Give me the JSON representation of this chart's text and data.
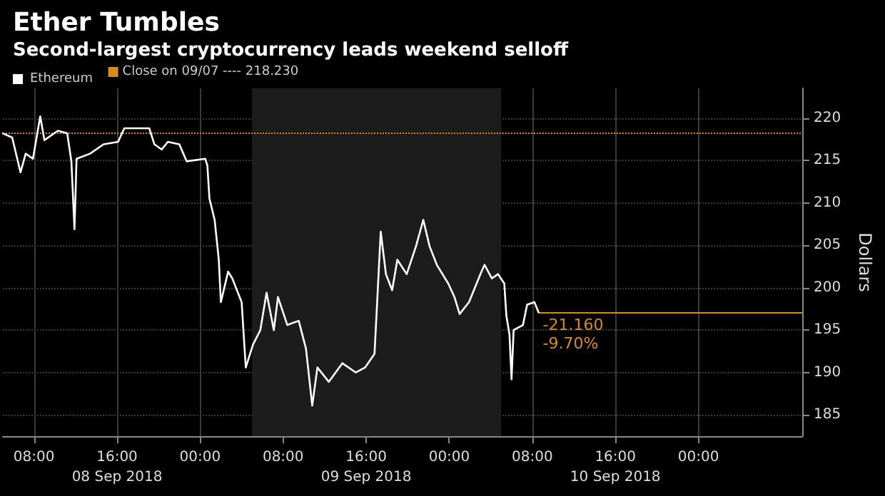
{
  "chart_data": {
    "type": "line",
    "title": "Ether Tumbles",
    "subtitle": "Second-largest cryptocurrency leads weekend selloff",
    "ylabel": "Dollars",
    "x": [
      "2018-09-08T05:00",
      "2018-09-08T05:54",
      "2018-09-08T06:42",
      "2018-09-08T07:12",
      "2018-09-08T07:54",
      "2018-09-08T08:36",
      "2018-09-08T09:00",
      "2018-09-08T10:18",
      "2018-09-08T11:12",
      "2018-09-08T11:36",
      "2018-09-08T11:54",
      "2018-09-08T12:06",
      "2018-09-08T13:24",
      "2018-09-08T14:42",
      "2018-09-08T16:06",
      "2018-09-08T16:42",
      "2018-09-08T17:48",
      "2018-09-08T19:06",
      "2018-09-08T19:36",
      "2018-09-08T20:18",
      "2018-09-08T20:54",
      "2018-09-08T22:00",
      "2018-09-08T22:42",
      "2018-09-09T00:30",
      "2018-09-09T00:42",
      "2018-09-09T00:54",
      "2018-09-09T01:24",
      "2018-09-09T01:48",
      "2018-09-09T02:00",
      "2018-09-09T02:42",
      "2018-09-09T03:06",
      "2018-09-09T04:00",
      "2018-09-09T04:24",
      "2018-09-09T05:06",
      "2018-09-09T05:48",
      "2018-09-09T06:24",
      "2018-09-09T07:06",
      "2018-09-09T07:30",
      "2018-09-09T08:24",
      "2018-09-09T09:30",
      "2018-09-09T10:12",
      "2018-09-09T10:48",
      "2018-09-09T11:18",
      "2018-09-09T12:24",
      "2018-09-09T13:42",
      "2018-09-09T15:00",
      "2018-09-09T15:54",
      "2018-09-09T16:48",
      "2018-09-09T17:06",
      "2018-09-09T17:24",
      "2018-09-09T17:54",
      "2018-09-09T18:30",
      "2018-09-09T19:00",
      "2018-09-09T19:54",
      "2018-09-09T20:48",
      "2018-09-09T21:30",
      "2018-09-09T22:06",
      "2018-09-09T22:48",
      "2018-09-09T23:54",
      "2018-09-10T00:30",
      "2018-09-10T01:00",
      "2018-09-10T01:54",
      "2018-09-10T03:00",
      "2018-09-10T03:24",
      "2018-09-10T04:06",
      "2018-09-10T04:42",
      "2018-09-10T05:18",
      "2018-09-10T05:30",
      "2018-09-10T05:48",
      "2018-09-10T06:00",
      "2018-09-10T06:12",
      "2018-09-10T07:06",
      "2018-09-10T07:30",
      "2018-09-10T08:12",
      "2018-09-10T08:36"
    ],
    "series": [
      {
        "name": "Ethereum",
        "color": "#ffffff",
        "values": [
          218.2,
          217.7,
          213.6,
          215.8,
          215.2,
          220.2,
          217.4,
          218.5,
          218.2,
          214.9,
          206.9,
          215.2,
          215.8,
          216.9,
          217.2,
          218.8,
          218.8,
          218.8,
          216.9,
          216.3,
          217.2,
          216.9,
          214.9,
          215.2,
          214.4,
          210.5,
          208.0,
          203.3,
          198.3,
          201.9,
          201.1,
          198.3,
          190.6,
          193.3,
          195.0,
          199.4,
          195.0,
          198.9,
          195.6,
          196.1,
          192.8,
          186.1,
          190.6,
          188.9,
          191.1,
          190.0,
          190.6,
          192.2,
          199.4,
          206.6,
          201.6,
          199.7,
          203.3,
          201.6,
          204.9,
          208.0,
          204.9,
          202.7,
          200.5,
          198.9,
          196.9,
          198.3,
          201.6,
          202.7,
          201.1,
          201.6,
          200.5,
          196.7,
          194.5,
          189.2,
          195.0,
          195.6,
          198.0,
          198.3,
          197.1
        ]
      }
    ],
    "xlim": [
      "2018-09-08T05:00",
      "2018-09-11T10:00"
    ],
    "xticks": [
      {
        "value": "2018-09-08T08:00",
        "label": "08:00"
      },
      {
        "value": "2018-09-08T16:00",
        "label": "16:00\n08 Sep 2018"
      },
      {
        "value": "2018-09-09T00:00",
        "label": "00:00"
      },
      {
        "value": "2018-09-09T08:00",
        "label": "08:00"
      },
      {
        "value": "2018-09-09T16:00",
        "label": "16:00\n09 Sep 2018"
      },
      {
        "value": "2018-09-10T00:00",
        "label": "00:00"
      },
      {
        "value": "2018-09-10T08:00",
        "label": "08:00"
      },
      {
        "value": "2018-09-10T16:00",
        "label": "16:00\n10 Sep 2018"
      },
      {
        "value": "2018-09-11T00:00",
        "label": "00:00"
      }
    ],
    "ylim": [
      182.5,
      223.5
    ],
    "yticks": [
      185,
      190,
      195,
      200,
      205,
      210,
      215,
      220
    ],
    "ref_lines": [
      {
        "axis": "y",
        "value": 218.23,
        "label": "Close on 09/07 ---- 218.230",
        "color": "#d98c1a",
        "line_style": "dotted"
      },
      {
        "axis": "y",
        "value": 197.07,
        "color": "#d98c1a",
        "line_style": "solid"
      }
    ],
    "bands": [
      {
        "axis": "x",
        "from": "2018-09-09T05:00",
        "to": "2018-09-10T05:00",
        "color": "#1c1c1c"
      }
    ],
    "annotations": [
      "-21.160",
      "-9.70%"
    ],
    "grid": true,
    "legend": "top left",
    "marker": "none",
    "line_style": "solid"
  }
}
